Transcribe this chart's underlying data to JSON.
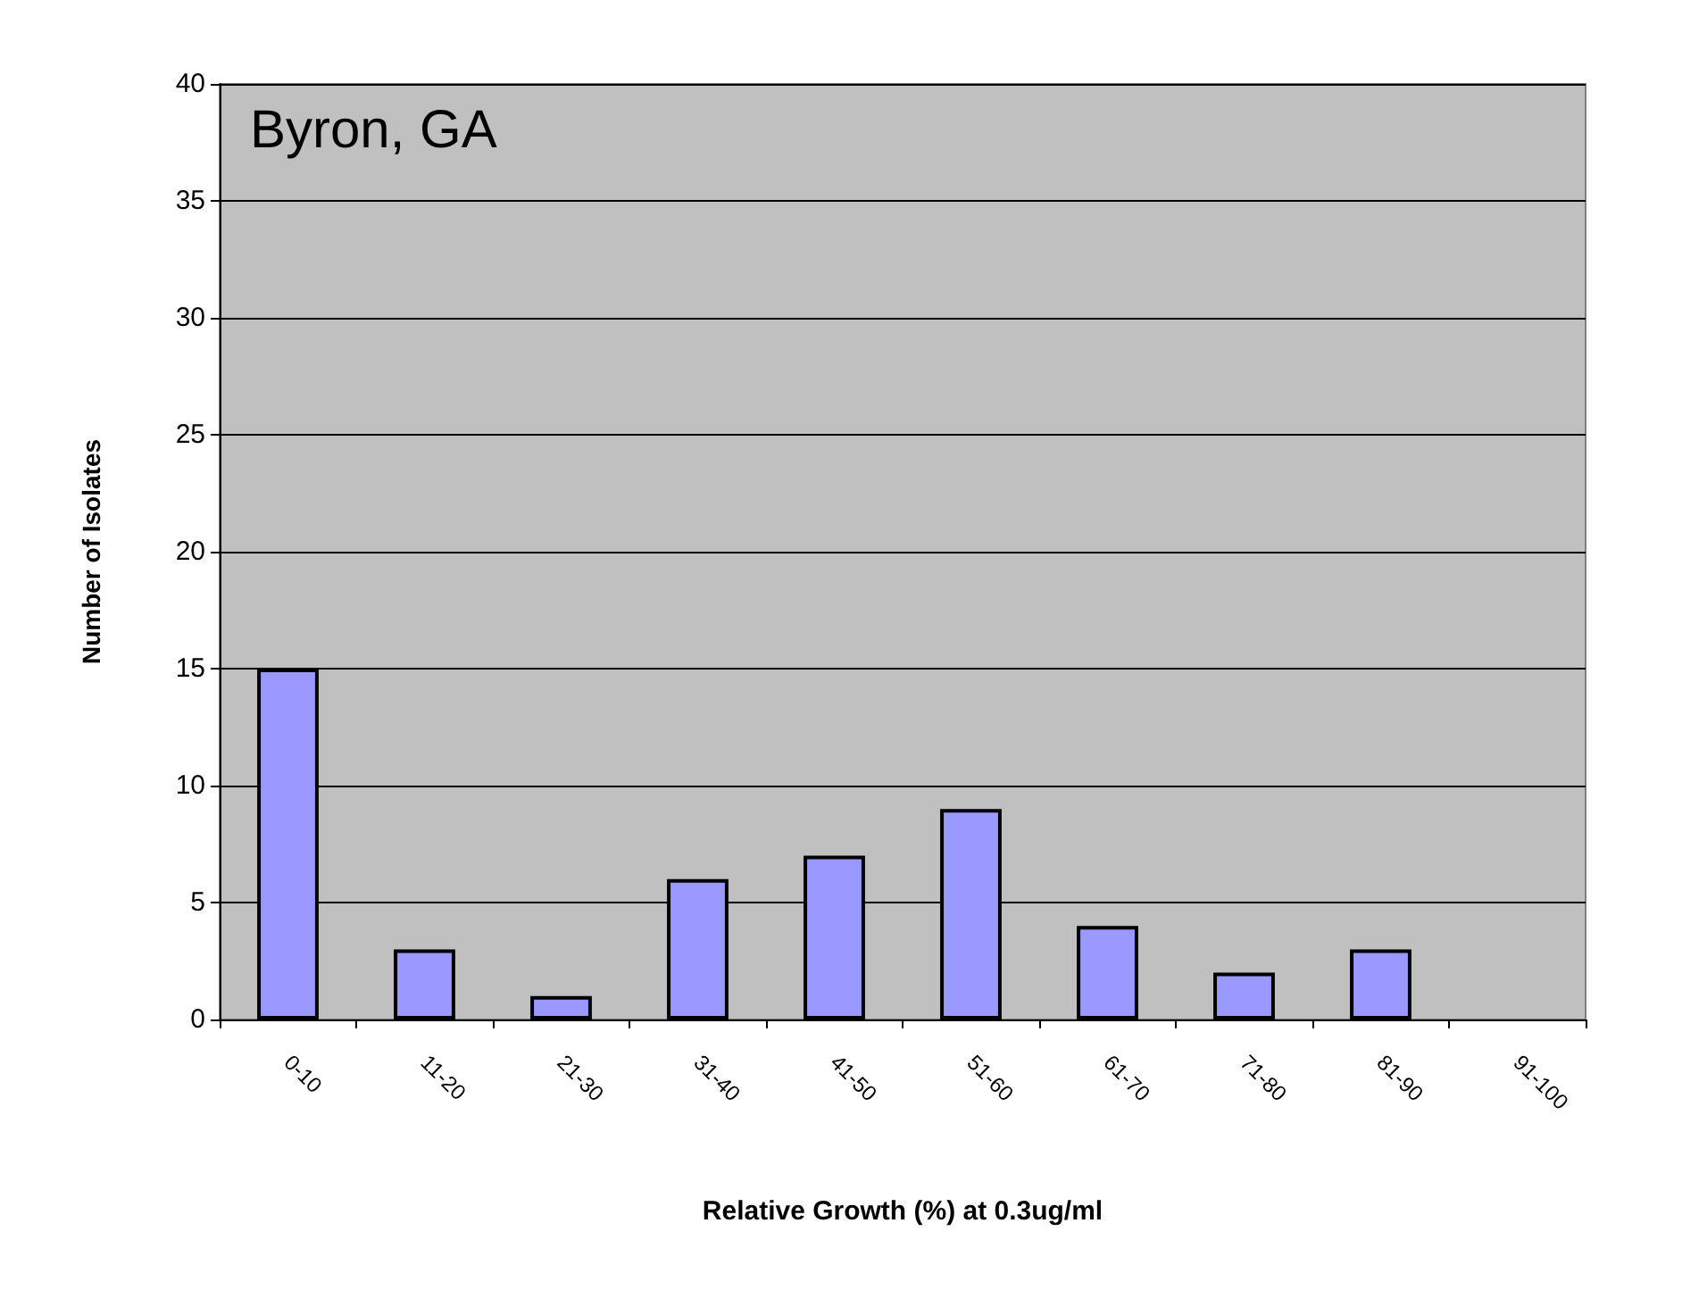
{
  "chart_data": {
    "type": "bar",
    "annotations": [
      "Byron, GA"
    ],
    "xlabel": "Relative Growth (%) at 0.3ug/ml",
    "ylabel": "Number of Isolates",
    "categories": [
      "0-10",
      "11-20",
      "21-30",
      "31-40",
      "41-50",
      "51-60",
      "61-70",
      "71-80",
      "81-90",
      "91-100"
    ],
    "values": [
      15,
      3,
      1,
      6,
      7,
      9,
      4,
      2,
      3,
      0
    ],
    "color": "#9999ff",
    "ylim": [
      0,
      40
    ],
    "yticks": [
      0,
      5,
      10,
      15,
      20,
      25,
      30,
      35,
      40
    ],
    "grid": "y"
  }
}
